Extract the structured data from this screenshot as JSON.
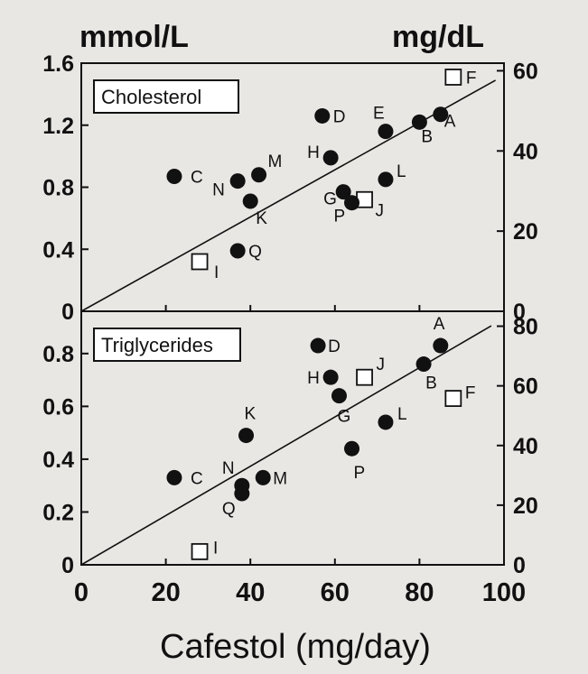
{
  "figure": {
    "left_unit": "mmol/L",
    "right_unit": "mg/dL",
    "xlabel": "Cafestol (mg/day)",
    "x_ticks": [
      "0",
      "20",
      "40",
      "60",
      "80",
      "100"
    ]
  },
  "colors": {
    "background": "#e9e7e4",
    "ink": "#111111",
    "panel": "#ffffff"
  },
  "chart_data": [
    {
      "type": "scatter",
      "title": "Cholesterol",
      "xlim": [
        0,
        100
      ],
      "ylim": [
        0,
        1.6
      ],
      "y2lim": [
        0,
        61.9
      ],
      "y_ticks": [
        "0",
        "0.4",
        "0.8",
        "1.2",
        "1.6"
      ],
      "y2_ticks": [
        "0",
        "20",
        "40",
        "60"
      ],
      "y_tick_values": [
        0,
        0.4,
        0.8,
        1.2,
        1.6
      ],
      "y2_tick_values": [
        0,
        20,
        40,
        60
      ],
      "trendline": {
        "x": [
          0,
          98
        ],
        "y": [
          0,
          1.49
        ]
      },
      "points": [
        {
          "label": "A",
          "x": 85,
          "y": 1.27,
          "marker": "filled-circle",
          "label_dx": 4,
          "label_dy": 14
        },
        {
          "label": "B",
          "x": 80,
          "y": 1.22,
          "marker": "filled-circle",
          "label_dx": 2,
          "label_dy": 22
        },
        {
          "label": "C",
          "x": 22,
          "y": 0.87,
          "marker": "filled-circle",
          "label_dx": 18,
          "label_dy": 7
        },
        {
          "label": "D",
          "x": 57,
          "y": 1.26,
          "marker": "filled-circle",
          "label_dx": 12,
          "label_dy": 7
        },
        {
          "label": "E",
          "x": 72,
          "y": 1.16,
          "marker": "filled-circle",
          "label_dx": -14,
          "label_dy": -14
        },
        {
          "label": "F",
          "x": 88,
          "y": 1.51,
          "marker": "open-square",
          "label_dx": 14,
          "label_dy": 7
        },
        {
          "label": "G",
          "x": 62,
          "y": 0.77,
          "marker": "filled-circle",
          "label_dx": -22,
          "label_dy": 14
        },
        {
          "label": "H",
          "x": 59,
          "y": 0.99,
          "marker": "filled-circle",
          "label_dx": -26,
          "label_dy": 0
        },
        {
          "label": "I",
          "x": 28,
          "y": 0.32,
          "marker": "open-square",
          "label_dx": 16,
          "label_dy": 18
        },
        {
          "label": "J",
          "x": 67,
          "y": 0.72,
          "marker": "open-square",
          "label_dx": 12,
          "label_dy": 18
        },
        {
          "label": "K",
          "x": 40,
          "y": 0.71,
          "marker": "filled-circle",
          "label_dx": 6,
          "label_dy": 25
        },
        {
          "label": "L",
          "x": 72,
          "y": 0.85,
          "marker": "filled-circle",
          "label_dx": 12,
          "label_dy": -3
        },
        {
          "label": "M",
          "x": 42,
          "y": 0.88,
          "marker": "filled-circle",
          "label_dx": 10,
          "label_dy": -9
        },
        {
          "label": "N",
          "x": 37,
          "y": 0.84,
          "marker": "filled-circle",
          "label_dx": -28,
          "label_dy": 16
        },
        {
          "label": "P",
          "x": 64,
          "y": 0.7,
          "marker": "filled-circle",
          "label_dx": -20,
          "label_dy": 21
        },
        {
          "label": "Q",
          "x": 37,
          "y": 0.39,
          "marker": "filled-circle",
          "label_dx": 12,
          "label_dy": 7
        }
      ]
    },
    {
      "type": "scatter",
      "title": "Triglycerides",
      "xlim": [
        0,
        100
      ],
      "ylim": [
        0,
        0.96
      ],
      "y2lim": [
        0,
        85
      ],
      "y_ticks": [
        "0",
        "0.2",
        "0.4",
        "0.6",
        "0.8"
      ],
      "y2_ticks": [
        "0",
        "20",
        "40",
        "60",
        "80"
      ],
      "y_tick_values": [
        0,
        0.2,
        0.4,
        0.6,
        0.8
      ],
      "y2_tick_values": [
        0,
        20,
        40,
        60,
        80
      ],
      "trendline": {
        "x": [
          0,
          97
        ],
        "y": [
          0,
          0.905
        ]
      },
      "points": [
        {
          "label": "A",
          "x": 85,
          "y": 0.83,
          "marker": "filled-circle",
          "label_dx": -8,
          "label_dy": -18
        },
        {
          "label": "B",
          "x": 81,
          "y": 0.76,
          "marker": "filled-circle",
          "label_dx": 2,
          "label_dy": 27
        },
        {
          "label": "C",
          "x": 22,
          "y": 0.33,
          "marker": "filled-circle",
          "label_dx": 18,
          "label_dy": 7
        },
        {
          "label": "D",
          "x": 56,
          "y": 0.83,
          "marker": "filled-circle",
          "label_dx": 11,
          "label_dy": 7
        },
        {
          "label": "F",
          "x": 88,
          "y": 0.63,
          "marker": "open-square",
          "label_dx": 13,
          "label_dy": 0
        },
        {
          "label": "G",
          "x": 61,
          "y": 0.64,
          "marker": "filled-circle",
          "label_dx": -2,
          "label_dy": 29
        },
        {
          "label": "H",
          "x": 59,
          "y": 0.71,
          "marker": "filled-circle",
          "label_dx": -26,
          "label_dy": 7
        },
        {
          "label": "I",
          "x": 28,
          "y": 0.05,
          "marker": "open-square",
          "label_dx": 15,
          "label_dy": 2
        },
        {
          "label": "J",
          "x": 67,
          "y": 0.71,
          "marker": "open-square",
          "label_dx": 13,
          "label_dy": -8
        },
        {
          "label": "K",
          "x": 39,
          "y": 0.49,
          "marker": "filled-circle",
          "label_dx": -2,
          "label_dy": -18
        },
        {
          "label": "L",
          "x": 72,
          "y": 0.54,
          "marker": "filled-circle",
          "label_dx": 13,
          "label_dy": -3
        },
        {
          "label": "M",
          "x": 43,
          "y": 0.33,
          "marker": "filled-circle",
          "label_dx": 11,
          "label_dy": 7
        },
        {
          "label": "N",
          "x": 38,
          "y": 0.3,
          "marker": "filled-circle",
          "label_dx": -22,
          "label_dy": -13
        },
        {
          "label": "P",
          "x": 64,
          "y": 0.44,
          "marker": "filled-circle",
          "label_dx": 2,
          "label_dy": 33
        },
        {
          "label": "Q",
          "x": 38,
          "y": 0.27,
          "marker": "filled-circle",
          "label_dx": -22,
          "label_dy": 23
        }
      ]
    }
  ]
}
